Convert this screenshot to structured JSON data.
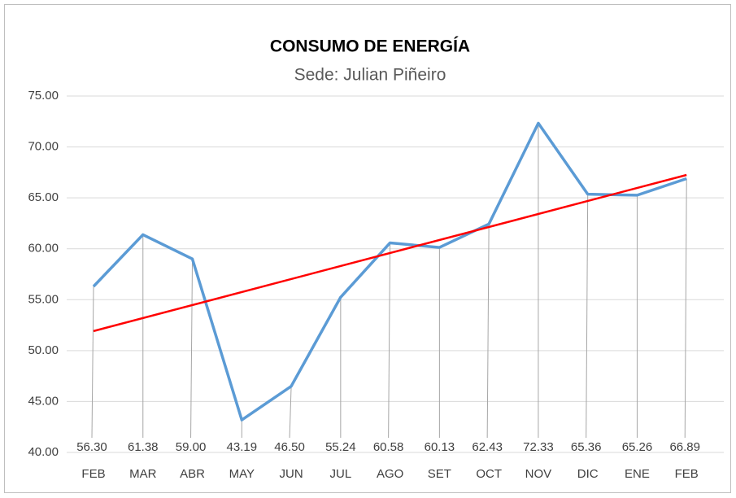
{
  "chart_data": {
    "type": "line",
    "title": "CONSUMO DE ENERGÍA",
    "subtitle": "Sede: Julian Piñeiro",
    "categories": [
      "FEB",
      "MAR",
      "ABR",
      "MAY",
      "JUN",
      "JUL",
      "AGO",
      "SET",
      "OCT",
      "NOV",
      "DIC",
      "ENE",
      "FEB"
    ],
    "series": [
      {
        "color": "#5b9bd5",
        "values": [
          56.3,
          61.38,
          59.0,
          43.19,
          46.5,
          55.24,
          60.58,
          60.13,
          62.43,
          72.33,
          65.36,
          65.26,
          66.89
        ],
        "value_labels": [
          "56.30",
          "61.38",
          "59.00",
          "43.19",
          "46.50",
          "55.24",
          "60.58",
          "60.13",
          "62.43",
          "72.33",
          "65.36",
          "65.26",
          "66.89"
        ]
      }
    ],
    "trendline": "linear",
    "trendline_color": "#ff0000",
    "ylim": [
      40,
      75
    ],
    "yticks": [
      {
        "value": 40,
        "label": "40.00"
      },
      {
        "value": 45,
        "label": "45.00"
      },
      {
        "value": 50,
        "label": "50.00"
      },
      {
        "value": 55,
        "label": "55.00"
      },
      {
        "value": 60,
        "label": "60.00"
      },
      {
        "value": 65,
        "label": "65.00"
      },
      {
        "value": 70,
        "label": "70.00"
      },
      {
        "value": 75,
        "label": "75.00"
      }
    ],
    "grid": true
  }
}
